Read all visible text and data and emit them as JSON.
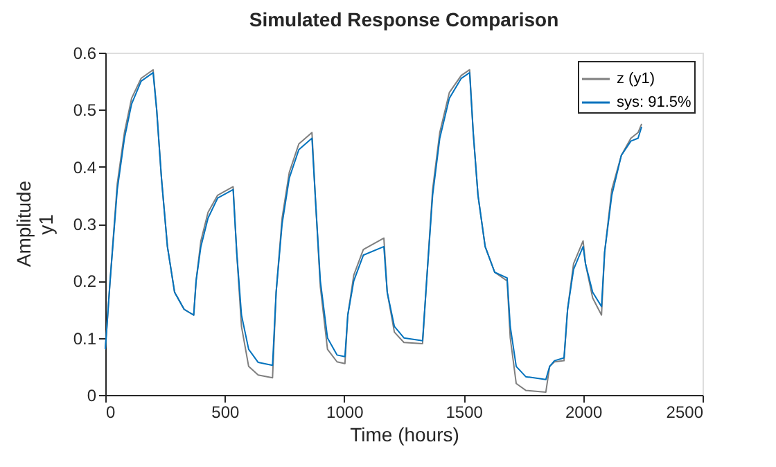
{
  "chart_data": {
    "type": "line",
    "title": "Simulated Response Comparison",
    "xlabel": "Time (hours)",
    "ylabel": "y1",
    "annotations": [
      "Amplitude"
    ],
    "xlim": [
      0,
      2500
    ],
    "xticks": [
      0,
      500,
      1000,
      1500,
      2000,
      2500
    ],
    "ylim": [
      0,
      0.6
    ],
    "yticks": [
      {
        "value": 0,
        "label": "0"
      },
      0.1,
      0.2,
      0.3,
      0.4,
      0.5,
      0.6
    ],
    "grid": false,
    "legend": "top right",
    "line_style": "solid",
    "series": [
      {
        "name": "z (y1)",
        "color": "#7f7f7f",
        "x": [
          0,
          20,
          50,
          80,
          110,
          150,
          200,
          215,
          235,
          260,
          290,
          330,
          370,
          380,
          400,
          430,
          470,
          535,
          550,
          570,
          600,
          640,
          700,
          715,
          740,
          770,
          810,
          865,
          880,
          900,
          930,
          970,
          1003,
          1015,
          1040,
          1080,
          1166,
          1180,
          1210,
          1250,
          1328,
          1345,
          1370,
          1400,
          1440,
          1490,
          1525,
          1540,
          1560,
          1590,
          1630,
          1682,
          1695,
          1720,
          1760,
          1844,
          1860,
          1880,
          1920,
          1935,
          1960,
          2000,
          2010,
          2040,
          2077,
          2090,
          2120,
          2160,
          2200,
          2230,
          2245
        ],
        "values": [
          0.08,
          0.2,
          0.37,
          0.46,
          0.52,
          0.555,
          0.57,
          0.5,
          0.38,
          0.26,
          0.18,
          0.15,
          0.14,
          0.2,
          0.27,
          0.32,
          0.35,
          0.365,
          0.25,
          0.12,
          0.05,
          0.035,
          0.03,
          0.18,
          0.31,
          0.39,
          0.44,
          0.46,
          0.34,
          0.19,
          0.08,
          0.058,
          0.055,
          0.14,
          0.21,
          0.255,
          0.275,
          0.18,
          0.11,
          0.092,
          0.09,
          0.2,
          0.36,
          0.46,
          0.53,
          0.56,
          0.57,
          0.46,
          0.35,
          0.26,
          0.215,
          0.2,
          0.1,
          0.02,
          0.008,
          0.005,
          0.05,
          0.058,
          0.06,
          0.15,
          0.23,
          0.27,
          0.23,
          0.17,
          0.14,
          0.25,
          0.36,
          0.42,
          0.45,
          0.46,
          0.475
        ]
      },
      {
        "name": "sys: 91.5%",
        "color": "#0072bd",
        "x": [
          0,
          20,
          50,
          80,
          110,
          150,
          200,
          215,
          235,
          260,
          290,
          330,
          370,
          380,
          400,
          430,
          470,
          535,
          550,
          570,
          600,
          640,
          700,
          715,
          740,
          770,
          810,
          865,
          880,
          900,
          930,
          970,
          1003,
          1015,
          1040,
          1080,
          1166,
          1180,
          1210,
          1250,
          1328,
          1345,
          1370,
          1400,
          1440,
          1490,
          1525,
          1540,
          1560,
          1590,
          1630,
          1682,
          1695,
          1720,
          1760,
          1844,
          1860,
          1880,
          1920,
          1935,
          1960,
          2000,
          2010,
          2040,
          2077,
          2090,
          2120,
          2160,
          2200,
          2230,
          2245
        ],
        "values": [
          0.08,
          0.2,
          0.36,
          0.45,
          0.51,
          0.55,
          0.565,
          0.5,
          0.38,
          0.26,
          0.18,
          0.15,
          0.14,
          0.2,
          0.26,
          0.31,
          0.345,
          0.36,
          0.25,
          0.14,
          0.08,
          0.057,
          0.052,
          0.18,
          0.3,
          0.38,
          0.43,
          0.45,
          0.34,
          0.2,
          0.1,
          0.07,
          0.067,
          0.14,
          0.2,
          0.245,
          0.26,
          0.18,
          0.12,
          0.1,
          0.095,
          0.2,
          0.35,
          0.45,
          0.52,
          0.555,
          0.565,
          0.46,
          0.35,
          0.26,
          0.215,
          0.205,
          0.12,
          0.05,
          0.032,
          0.027,
          0.05,
          0.06,
          0.065,
          0.15,
          0.22,
          0.26,
          0.23,
          0.18,
          0.155,
          0.25,
          0.35,
          0.42,
          0.445,
          0.45,
          0.47
        ]
      }
    ]
  }
}
